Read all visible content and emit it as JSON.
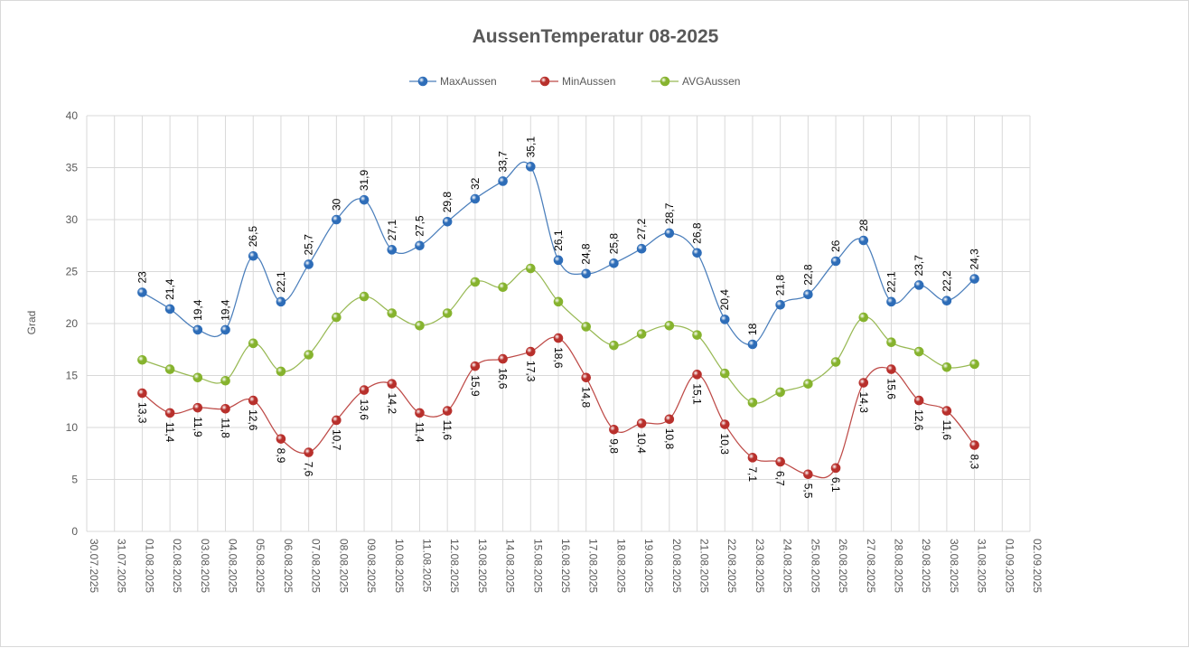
{
  "chart_data": {
    "type": "line",
    "title": "AussenTemperatur 08-2025",
    "ylabel": "Grad",
    "xlabel": "",
    "ylim": [
      0,
      40
    ],
    "yticks": [
      0,
      5,
      10,
      15,
      20,
      25,
      30,
      35,
      40
    ],
    "x_ticks": [
      "30.07.2025",
      "31.07.2025",
      "01.08.2025",
      "02.08.2025",
      "03.08.2025",
      "04.08.2025",
      "05.08.2025",
      "06.08.2025",
      "07.08.2025",
      "08.08.2025",
      "09.08.2025",
      "10.08.2025",
      "11.08.2025",
      "12.08.2025",
      "13.08.2025",
      "14.08.2025",
      "15.08.2025",
      "16.08.2025",
      "17.08.2025",
      "18.08.2025",
      "19.08.2025",
      "20.08.2025",
      "21.08.2025",
      "22.08.2025",
      "23.08.2025",
      "24.08.2025",
      "25.08.2025",
      "26.08.2025",
      "27.08.2025",
      "28.08.2025",
      "29.08.2025",
      "30.08.2025",
      "31.08.2025",
      "01.09.2025",
      "02.09.2025"
    ],
    "x_start_index": 2,
    "legend_position": "top-center",
    "grid": true,
    "series": [
      {
        "name": "MaxAussen",
        "color": "#4a7ebb",
        "marker": "#2e6db8",
        "labels": true,
        "label_pos": "above",
        "values": [
          23,
          21.4,
          19.4,
          19.4,
          26.5,
          22.1,
          25.7,
          30,
          31.9,
          27.1,
          27.5,
          29.8,
          32,
          33.7,
          35.1,
          26.1,
          24.8,
          25.8,
          27.2,
          28.7,
          26.8,
          20.4,
          18,
          21.8,
          22.8,
          26,
          28,
          22.1,
          23.7,
          22.2,
          24.3
        ],
        "value_labels": [
          "23",
          "21,4",
          "19,4",
          "19,4",
          "26,5",
          "22,1",
          "25,7",
          "30",
          "31,9",
          "27,1",
          "27,5",
          "29,8",
          "32",
          "33,7",
          "35,1",
          "26,1",
          "24,8",
          "25,8",
          "27,2",
          "28,7",
          "26,8",
          "20,4",
          "18",
          "21,8",
          "22,8",
          "26",
          "28",
          "22,1",
          "23,7",
          "22,2",
          "24,3"
        ]
      },
      {
        "name": "MinAussen",
        "color": "#be4b48",
        "marker": "#b8302c",
        "labels": true,
        "label_pos": "below",
        "values": [
          13.3,
          11.4,
          11.9,
          11.8,
          12.6,
          8.9,
          7.6,
          10.7,
          13.6,
          14.2,
          11.4,
          11.6,
          15.9,
          16.6,
          17.3,
          18.6,
          14.8,
          9.8,
          10.4,
          10.8,
          15.1,
          10.3,
          7.1,
          6.7,
          5.5,
          6.1,
          14.3,
          15.6,
          12.6,
          11.6,
          8.3
        ],
        "value_labels": [
          "13,3",
          "11,4",
          "11,9",
          "11,8",
          "12,6",
          "8,9",
          "7,6",
          "10,7",
          "13,6",
          "14,2",
          "11,4",
          "11,6",
          "15,9",
          "16,6",
          "17,3",
          "18,6",
          "14,8",
          "9,8",
          "10,4",
          "10,8",
          "15,1",
          "10,3",
          "7,1",
          "6,7",
          "5,5",
          "6,1",
          "14,3",
          "15,6",
          "12,6",
          "11,6",
          "8,3"
        ]
      },
      {
        "name": "AVGAussen",
        "color": "#98b954",
        "marker": "#86b32e",
        "labels": false,
        "values": [
          16.5,
          15.6,
          14.8,
          14.5,
          18.1,
          15.4,
          17,
          20.6,
          22.6,
          21,
          19.8,
          21,
          24,
          23.5,
          25.3,
          22.1,
          19.7,
          17.9,
          19,
          19.8,
          18.9,
          15.2,
          12.4,
          13.4,
          14.2,
          16.3,
          20.6,
          18.2,
          17.3,
          15.8,
          16.1
        ]
      }
    ]
  }
}
